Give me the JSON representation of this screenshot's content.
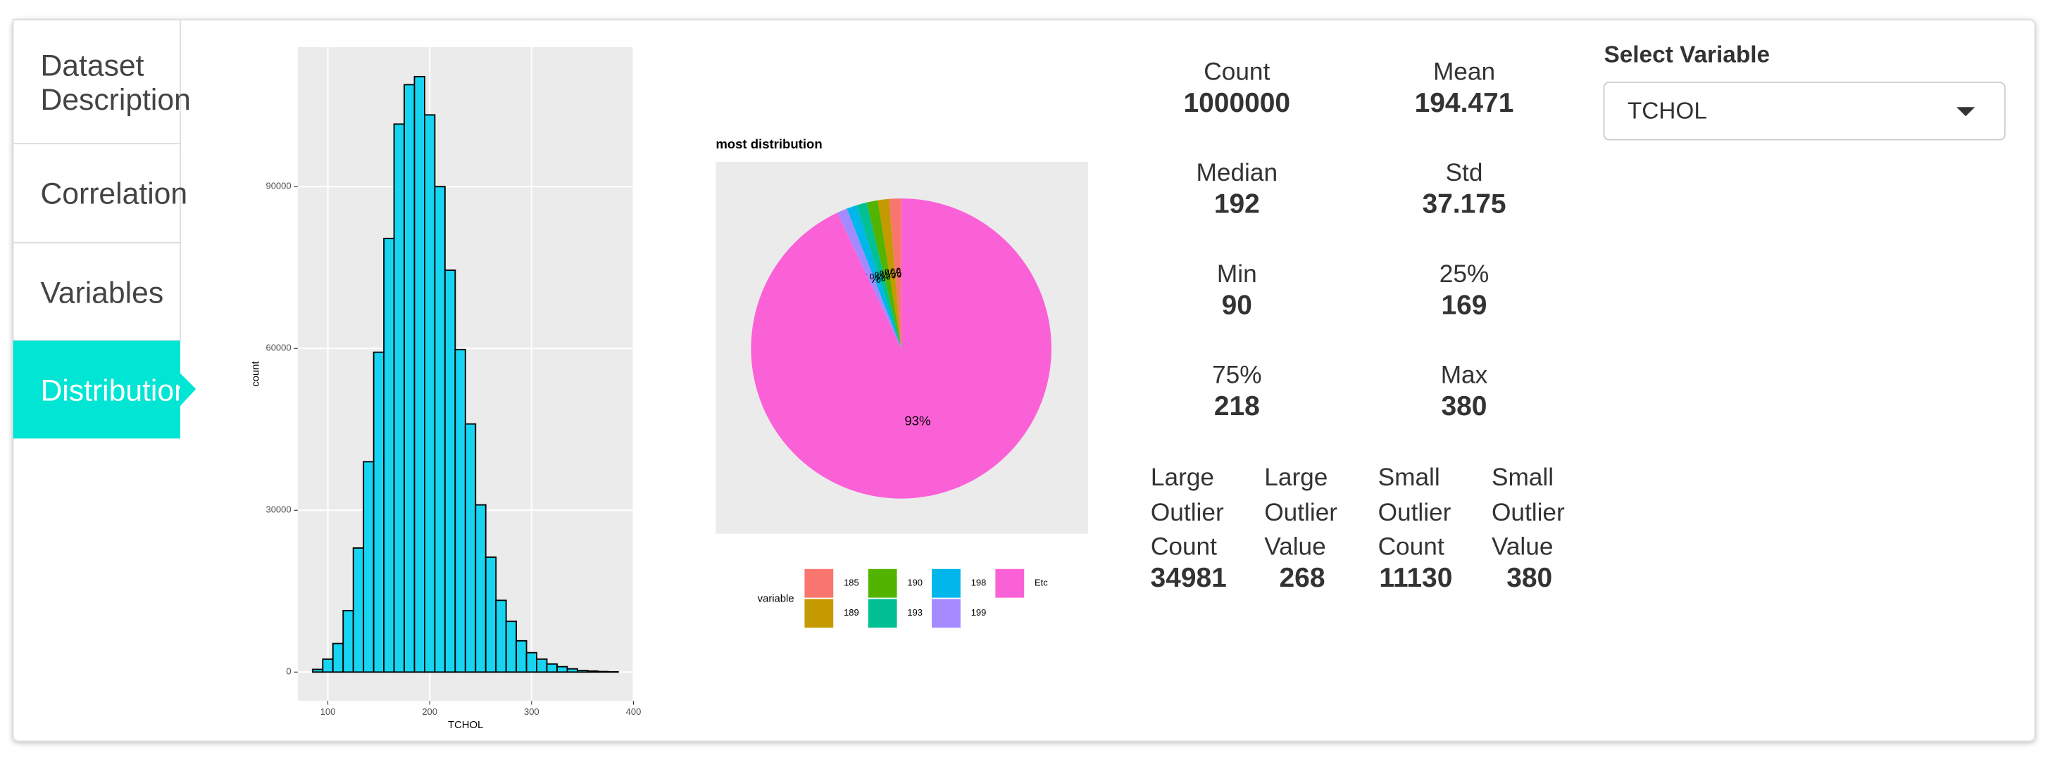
{
  "tabs": [
    "Dataset Description",
    "Correlation",
    "Variables",
    "Distribution"
  ],
  "active_tab": 3,
  "chart_data": [
    {
      "type": "histogram",
      "xlabel": "TCHOL",
      "ylabel": "count",
      "bins": [
        85,
        95,
        105,
        115,
        125,
        135,
        145,
        155,
        165,
        175,
        185,
        195,
        205,
        215,
        225,
        235,
        245,
        255,
        265,
        275,
        285,
        295,
        305,
        315,
        325,
        335,
        345,
        355,
        365,
        375,
        385
      ],
      "counts": [
        500,
        2400,
        5300,
        11400,
        23000,
        39000,
        59300,
        80400,
        101600,
        108900,
        110400,
        103300,
        90000,
        74500,
        59800,
        46000,
        31000,
        21300,
        13300,
        9400,
        5800,
        3600,
        2400,
        1500,
        1000,
        600,
        300,
        200,
        100,
        50
      ],
      "color": "#17d4f0",
      "xlim": [
        70.5,
        400
      ],
      "ylim": [
        -5320,
        115870
      ],
      "xticks": [
        100,
        200,
        300,
        400
      ],
      "yticks": [
        0,
        30000,
        60000,
        90000
      ],
      "grid": true
    },
    {
      "type": "pie",
      "title": "most distribution",
      "legend_title": "variable",
      "categories": [
        "185",
        "189",
        "190",
        "193",
        "198",
        "199",
        "Etc"
      ],
      "values": [
        1.3,
        1.2,
        1.2,
        1.1,
        1.1,
        1.1,
        93
      ],
      "value_labels": [
        "1%",
        "1%",
        "1%",
        "1%",
        "1%",
        "1%",
        "93%"
      ],
      "colors": [
        "#f8766d",
        "#c49a00",
        "#53b400",
        "#00c094",
        "#00b6eb",
        "#a58aff",
        "#fb61d7"
      ]
    }
  ],
  "stats": [
    {
      "label": "Count",
      "value": 1000000
    },
    {
      "label": "Mean",
      "value": 194.471
    },
    {
      "label": "Median",
      "value": 192
    },
    {
      "label": "Std",
      "value": 37.175
    },
    {
      "label": "Min",
      "value": 90
    },
    {
      "label": "25%",
      "value": 169
    },
    {
      "label": "75%",
      "value": 218
    },
    {
      "label": "Max",
      "value": 380
    }
  ],
  "outliers": [
    {
      "label": "Large Outlier Count",
      "value": 34981
    },
    {
      "label": "Large Outlier Value",
      "value": 268
    },
    {
      "label": "Small Outlier Count",
      "value": 11130
    },
    {
      "label": "Small Outlier Value",
      "value": 380
    }
  ],
  "select": {
    "label": "Select Variable",
    "value": "TCHOL"
  }
}
